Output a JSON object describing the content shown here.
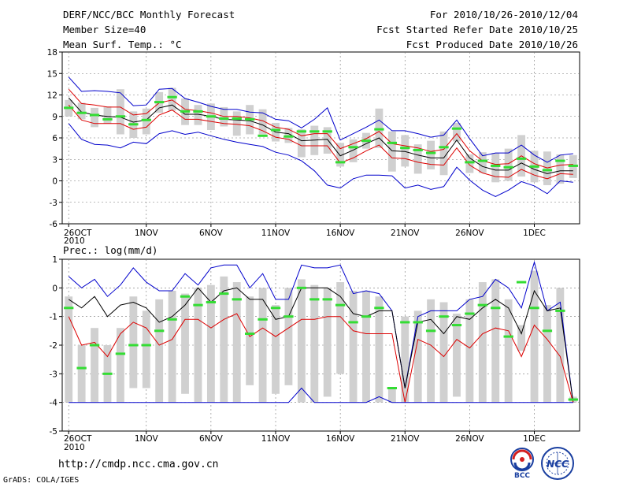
{
  "header": {
    "title": "DERF/NCC/BCC Monthly Forecast",
    "member_size": "Member Size=40",
    "variable": "Mean Surf. Temp.: °C",
    "forecast_period": "For 2010/10/26-2010/12/04",
    "refer_date": "Fcst Started Refer Date 2010/10/25",
    "produced_date": "Fcst Produced Date 2010/10/26"
  },
  "footer": {
    "url": "http://cmdp.ncc.cma.gov.cn",
    "credit": "GrADS: COLA/IGES",
    "logo_bcc_text": "BCC",
    "logo_ncc_text": "NCC"
  },
  "colors": {
    "envelope": "#0000cc",
    "spread": "#dd0000",
    "mean": "#000000",
    "marker": "#33dd33",
    "bar": "#d0d0d0",
    "grid": "#777777"
  },
  "chart_data": [
    {
      "id": "temperature",
      "type": "line",
      "title": "Mean Surf. Temp.: °C",
      "x_tick_labels": [
        "26OCT",
        "1NOV",
        "6NOV",
        "11NOV",
        "16NOV",
        "21NOV",
        "26NOV",
        "1DEC"
      ],
      "x_year_label": "2010",
      "x_tick_days": [
        0,
        6,
        11,
        16,
        21,
        26,
        31,
        36
      ],
      "ylim": [
        -6,
        18
      ],
      "yticks": [
        -6,
        -3,
        0,
        3,
        6,
        9,
        12,
        15,
        18
      ],
      "days": 40,
      "series": [
        {
          "name": "max",
          "values": [
            14.5,
            12.5,
            12.6,
            12.5,
            12.3,
            10.5,
            10.6,
            12.8,
            12.9,
            11.5,
            11.0,
            10.4,
            10.0,
            10.0,
            9.6,
            9.5,
            8.6,
            8.4,
            7.4,
            8.6,
            10.2,
            5.7,
            6.6,
            7.5,
            8.5,
            7.0,
            7.0,
            6.6,
            6.1,
            6.4,
            8.5,
            5.9,
            3.5,
            3.9,
            3.9,
            5.0,
            3.6,
            2.6,
            3.6,
            3.8
          ]
        },
        {
          "name": "upper",
          "values": [
            12.8,
            10.8,
            10.6,
            10.3,
            10.3,
            9.2,
            9.4,
            10.9,
            11.3,
            10.0,
            9.8,
            9.5,
            9.0,
            9.0,
            8.8,
            8.4,
            7.5,
            7.2,
            6.3,
            6.6,
            6.6,
            4.5,
            5.2,
            5.9,
            6.9,
            5.2,
            4.9,
            4.6,
            4.1,
            4.4,
            6.6,
            4.2,
            2.8,
            2.3,
            2.4,
            3.5,
            2.4,
            1.8,
            2.2,
            2.3
          ]
        },
        {
          "name": "mean",
          "values": [
            11.6,
            9.6,
            9.2,
            9.0,
            8.9,
            8.2,
            8.5,
            10.2,
            10.6,
            9.3,
            9.3,
            9.0,
            8.6,
            8.5,
            8.4,
            7.8,
            6.8,
            6.6,
            5.6,
            5.7,
            5.8,
            3.5,
            4.3,
            5.2,
            6.0,
            4.2,
            4.1,
            3.6,
            3.2,
            3.2,
            5.7,
            3.2,
            2.0,
            1.5,
            1.5,
            2.5,
            1.6,
            1.0,
            1.4,
            1.4
          ]
        },
        {
          "name": "lower",
          "values": [
            10.6,
            8.5,
            8.0,
            8.0,
            8.0,
            7.2,
            7.5,
            9.2,
            9.9,
            8.6,
            8.6,
            8.3,
            8.0,
            7.9,
            7.7,
            7.0,
            6.1,
            5.8,
            4.9,
            4.9,
            4.9,
            2.5,
            3.2,
            4.2,
            5.0,
            3.2,
            3.1,
            2.6,
            2.3,
            2.2,
            4.6,
            2.2,
            1.1,
            0.6,
            0.5,
            1.6,
            0.8,
            0.3,
            1.0,
            0.9
          ]
        },
        {
          "name": "min",
          "values": [
            8.0,
            5.8,
            5.1,
            5.0,
            4.6,
            5.4,
            5.2,
            6.6,
            7.0,
            6.5,
            6.8,
            6.3,
            5.8,
            5.4,
            5.1,
            4.8,
            4.0,
            3.6,
            2.8,
            1.4,
            -0.6,
            -1.0,
            0.3,
            0.8,
            0.8,
            0.7,
            -1.0,
            -0.6,
            -1.2,
            -0.8,
            1.9,
            0.1,
            -1.3,
            -2.2,
            -1.3,
            -0.1,
            -0.7,
            -1.8,
            0.0,
            -0.2
          ]
        }
      ],
      "markers": [
        10.2,
        9.5,
        9.2,
        8.6,
        9.0,
        7.9,
        8.5,
        11.0,
        11.7,
        9.7,
        9.7,
        9.0,
        8.7,
        8.7,
        8.6,
        6.3,
        7.1,
        6.2,
        6.9,
        6.9,
        6.9,
        2.6,
        4.7,
        5.6,
        7.2,
        5.3,
        4.6,
        4.3,
        3.9,
        4.7,
        7.3,
        2.6,
        2.8,
        2.1,
        1.9,
        3.1,
        2.0,
        1.5,
        2.8,
        2.1
      ],
      "bars": [
        [
          9.0,
          11.3
        ],
        [
          8.6,
          10.9
        ],
        [
          7.5,
          10.2
        ],
        [
          8.0,
          10.4
        ],
        [
          6.5,
          12.8
        ],
        [
          6.0,
          9.7
        ],
        [
          6.5,
          10.1
        ],
        [
          9.5,
          12.4
        ],
        [
          9.8,
          13.0
        ],
        [
          7.8,
          11.5
        ],
        [
          7.8,
          10.6
        ],
        [
          7.1,
          10.8
        ],
        [
          7.6,
          10.3
        ],
        [
          6.3,
          9.7
        ],
        [
          6.5,
          10.6
        ],
        [
          6.5,
          10.0
        ],
        [
          5.5,
          8.1
        ],
        [
          5.3,
          7.4
        ],
        [
          3.3,
          7.2
        ],
        [
          3.6,
          7.7
        ],
        [
          3.8,
          7.5
        ],
        [
          2.0,
          5.3
        ],
        [
          2.6,
          5.8
        ],
        [
          4.5,
          6.7
        ],
        [
          4.6,
          10.1
        ],
        [
          1.3,
          6.9
        ],
        [
          2.0,
          6.4
        ],
        [
          1.0,
          5.1
        ],
        [
          1.6,
          5.6
        ],
        [
          0.8,
          6.9
        ],
        [
          5.5,
          8.1
        ],
        [
          1.1,
          3.7
        ],
        [
          1.1,
          4.0
        ],
        [
          -0.2,
          3.9
        ],
        [
          0.0,
          4.5
        ],
        [
          0.6,
          6.4
        ],
        [
          -0.2,
          4.2
        ],
        [
          -0.6,
          4.1
        ],
        [
          -0.4,
          3.7
        ],
        [
          0.4,
          3.6
        ]
      ]
    },
    {
      "id": "precipitation",
      "type": "line",
      "title": "Prec.: log(mm/d)",
      "x_tick_labels": [
        "26OCT",
        "1NOV",
        "6NOV",
        "11NOV",
        "16NOV",
        "21NOV",
        "26NOV",
        "1DEC"
      ],
      "x_year_label": "2010",
      "x_tick_days": [
        0,
        6,
        11,
        16,
        21,
        26,
        31,
        36
      ],
      "ylim": [
        -5,
        1
      ],
      "yticks": [
        -5,
        -4,
        -3,
        -2,
        -1,
        0,
        1
      ],
      "days": 40,
      "series": [
        {
          "name": "max",
          "values": [
            0.4,
            0.0,
            0.3,
            -0.3,
            0.1,
            0.7,
            0.2,
            -0.1,
            -0.1,
            0.5,
            0.1,
            0.7,
            0.8,
            0.8,
            0.0,
            0.5,
            -0.4,
            -0.4,
            0.8,
            0.7,
            0.7,
            0.8,
            -0.2,
            -0.1,
            -0.2,
            -0.8,
            -3.5,
            -1.0,
            -0.8,
            -0.8,
            -0.8,
            -0.4,
            -0.3,
            0.3,
            0.0,
            -0.7,
            0.9,
            -0.8,
            -0.5,
            -4.0
          ]
        },
        {
          "name": "mean",
          "values": [
            -0.4,
            -0.7,
            -0.3,
            -1.0,
            -0.6,
            -0.5,
            -0.7,
            -1.2,
            -1.0,
            -0.6,
            0.0,
            -0.5,
            -0.1,
            0.0,
            -0.4,
            -0.4,
            -1.1,
            -1.0,
            0.0,
            0.0,
            0.0,
            -0.3,
            -0.9,
            -1.0,
            -0.8,
            -0.8,
            -3.5,
            -1.2,
            -1.1,
            -1.6,
            -1.0,
            -1.1,
            -0.7,
            -0.4,
            -0.7,
            -1.6,
            -0.1,
            -0.8,
            -0.7,
            -4.0
          ]
        },
        {
          "name": "lower",
          "values": [
            -1.0,
            -2.0,
            -1.9,
            -2.4,
            -1.6,
            -1.2,
            -1.4,
            -2.0,
            -1.8,
            -1.1,
            -1.1,
            -1.4,
            -1.1,
            -0.9,
            -1.7,
            -1.4,
            -1.7,
            -1.4,
            -1.1,
            -1.1,
            -1.0,
            -1.0,
            -1.5,
            -1.6,
            -1.6,
            -1.6,
            -4.0,
            -1.8,
            -2.0,
            -2.4,
            -1.8,
            -2.1,
            -1.6,
            -1.4,
            -1.5,
            -2.4,
            -1.3,
            -1.8,
            -2.4,
            -4.0
          ]
        },
        {
          "name": "min",
          "values": [
            -4.0,
            -4.0,
            -4.0,
            -4.0,
            -4.0,
            -4.0,
            -4.0,
            -4.0,
            -4.0,
            -4.0,
            -4.0,
            -4.0,
            -4.0,
            -4.0,
            -4.0,
            -4.0,
            -4.0,
            -4.0,
            -3.5,
            -4.0,
            -4.0,
            -4.0,
            -4.0,
            -4.0,
            -3.8,
            -4.0,
            -4.0,
            -4.0,
            -4.0,
            -4.0,
            -4.0,
            -4.0,
            -4.0,
            -4.0,
            -4.0,
            -4.0,
            -4.0,
            -4.0,
            -4.0,
            -4.0
          ]
        }
      ],
      "markers": [
        -0.7,
        -2.8,
        -2.0,
        -3.0,
        -2.3,
        -2.0,
        -2.0,
        -1.5,
        -1.1,
        -0.3,
        -0.6,
        -0.5,
        -0.2,
        -0.4,
        -1.6,
        -1.1,
        -0.7,
        -1.0,
        0.0,
        -0.4,
        -0.4,
        -0.6,
        -1.2,
        -1.0,
        -0.7,
        -3.5,
        -1.2,
        -1.2,
        -1.5,
        -1.0,
        -1.3,
        -0.9,
        -0.6,
        -0.7,
        -1.7,
        0.2,
        -0.7,
        -1.5,
        -0.8,
        -3.9
      ],
      "bars": [
        [
          -4.0,
          -0.3
        ],
        [
          -4.0,
          -2.0
        ],
        [
          -4.0,
          -1.4
        ],
        [
          -4.0,
          -2.0
        ],
        [
          -4.0,
          -1.4
        ],
        [
          -3.5,
          -0.3
        ],
        [
          -3.5,
          -0.8
        ],
        [
          -4.0,
          -0.4
        ],
        [
          -4.0,
          -0.1
        ],
        [
          -3.7,
          -0.2
        ],
        [
          -4.0,
          0.0
        ],
        [
          -4.0,
          0.1
        ],
        [
          -4.0,
          0.4
        ],
        [
          -4.0,
          0.2
        ],
        [
          -3.4,
          -0.3
        ],
        [
          -4.0,
          0.0
        ],
        [
          -3.7,
          -0.6
        ],
        [
          -3.4,
          0.0
        ],
        [
          -4.0,
          0.3
        ],
        [
          -4.0,
          0.1
        ],
        [
          -3.8,
          0.0
        ],
        [
          -3.0,
          0.2
        ],
        [
          -4.0,
          -0.1
        ],
        [
          -4.0,
          -0.1
        ],
        [
          -4.0,
          -0.3
        ],
        [
          -4.0,
          -3.5
        ],
        [
          -4.0,
          -1.0
        ],
        [
          -4.0,
          -0.8
        ],
        [
          -4.0,
          -0.4
        ],
        [
          -4.0,
          -0.5
        ],
        [
          -3.8,
          -0.9
        ],
        [
          -4.0,
          -0.4
        ],
        [
          -4.0,
          0.2
        ],
        [
          -4.0,
          0.3
        ],
        [
          -4.0,
          -0.4
        ],
        [
          -2.2,
          -1.3
        ],
        [
          -4.0,
          0.6
        ],
        [
          -4.0,
          -0.6
        ],
        [
          -4.0,
          0.0
        ],
        [
          -4.0,
          -3.8
        ]
      ]
    }
  ]
}
